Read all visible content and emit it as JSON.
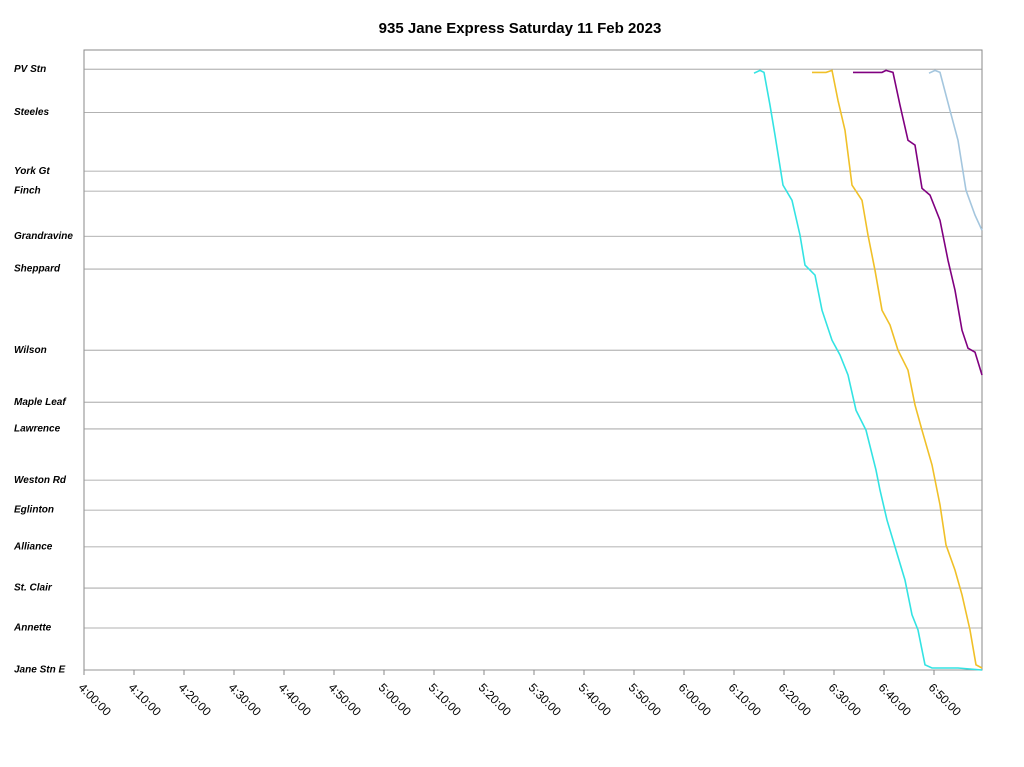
{
  "chart_data": {
    "type": "line",
    "title": "935 Jane Express Saturday 11 Feb 2023",
    "xlim": [
      240,
      419.6
    ],
    "xticks": [
      {
        "value": 240,
        "label": "4:00:00"
      },
      {
        "value": 250,
        "label": "4:10:00"
      },
      {
        "value": 260,
        "label": "4:20:00"
      },
      {
        "value": 270,
        "label": "4:30:00"
      },
      {
        "value": 280,
        "label": "4:40:00"
      },
      {
        "value": 290,
        "label": "4:50:00"
      },
      {
        "value": 300,
        "label": "5:00:00"
      },
      {
        "value": 310,
        "label": "5:10:00"
      },
      {
        "value": 320,
        "label": "5:20:00"
      },
      {
        "value": 330,
        "label": "5:30:00"
      },
      {
        "value": 340,
        "label": "5:40:00"
      },
      {
        "value": 350,
        "label": "5:50:00"
      },
      {
        "value": 360,
        "label": "6:00:00"
      },
      {
        "value": 370,
        "label": "6:10:00"
      },
      {
        "value": 380,
        "label": "6:20:00"
      },
      {
        "value": 390,
        "label": "6:30:00"
      },
      {
        "value": 400,
        "label": "6:40:00"
      },
      {
        "value": 410,
        "label": "6:50:00"
      }
    ],
    "ylim": [
      15.03,
      -0.48
    ],
    "yticks": [
      {
        "value": 0,
        "label": "PV Stn"
      },
      {
        "value": 1.08,
        "label": "Steeles"
      },
      {
        "value": 2.55,
        "label": "York Gt"
      },
      {
        "value": 3.05,
        "label": "Finch"
      },
      {
        "value": 4.18,
        "label": "Grandravine"
      },
      {
        "value": 5.0,
        "label": "Sheppard"
      },
      {
        "value": 7.03,
        "label": "Wilson"
      },
      {
        "value": 8.33,
        "label": "Maple Leaf"
      },
      {
        "value": 9.0,
        "label": "Lawrence"
      },
      {
        "value": 10.28,
        "label": "Weston Rd"
      },
      {
        "value": 11.03,
        "label": "Eglinton"
      },
      {
        "value": 11.95,
        "label": "Alliance"
      },
      {
        "value": 12.98,
        "label": "St. Clair"
      },
      {
        "value": 13.98,
        "label": "Annette"
      },
      {
        "value": 15.03,
        "label": "Jane Stn E"
      }
    ],
    "grid": true,
    "series": [
      {
        "color": "#33e3e3",
        "x": [
          374.0,
          375.2,
          376.0,
          377.2,
          378.2,
          379.8,
          381.6,
          383.2,
          384.2,
          386.2,
          387.6,
          389.6,
          391.2,
          392.8,
          394.4,
          396.4,
          398.4,
          399.2,
          400.6,
          402.4,
          404.2,
          405.6,
          406.8,
          408.2,
          409.6,
          414.8,
          419.6
        ],
        "values": [
          0.1,
          0.03,
          0.08,
          0.9,
          1.65,
          2.9,
          3.28,
          4.15,
          4.9,
          5.15,
          6.03,
          6.78,
          7.15,
          7.65,
          8.53,
          9.03,
          10.03,
          10.53,
          11.28,
          12.03,
          12.78,
          13.65,
          14.03,
          14.9,
          14.98,
          14.98,
          15.03
        ]
      },
      {
        "color": "#f0c028",
        "x": [
          385.6,
          388.4,
          389.6,
          390.8,
          392.2,
          393.6,
          395.6,
          396.8,
          398.2,
          399.6,
          401.2,
          402.8,
          404.8,
          406.2,
          407.6,
          409.6,
          411.2,
          412.4,
          414.2,
          415.6,
          417.2,
          418.4,
          419.6
        ],
        "values": [
          0.08,
          0.08,
          0.03,
          0.78,
          1.53,
          2.9,
          3.28,
          4.15,
          5.03,
          6.03,
          6.4,
          7.03,
          7.53,
          8.4,
          9.03,
          9.9,
          10.9,
          11.9,
          12.53,
          13.15,
          14.03,
          14.9,
          14.98
        ]
      },
      {
        "color": "#800080",
        "x": [
          393.8,
          399.6,
          400.4,
          401.8,
          403.2,
          404.8,
          406.2,
          407.6,
          409.2,
          411.2,
          412.8,
          414.2,
          415.6,
          416.8,
          418.2,
          419.6
        ],
        "values": [
          0.08,
          0.08,
          0.03,
          0.08,
          0.9,
          1.78,
          1.9,
          2.98,
          3.15,
          3.78,
          4.78,
          5.53,
          6.53,
          6.98,
          7.08,
          7.65
        ]
      },
      {
        "color": "#a4c6de",
        "x": [
          409.0,
          410.2,
          411.2,
          413.2,
          414.8,
          416.4,
          418.2,
          419.6
        ],
        "values": [
          0.1,
          0.03,
          0.08,
          1.03,
          1.78,
          3.03,
          3.65,
          4.03
        ]
      }
    ]
  }
}
